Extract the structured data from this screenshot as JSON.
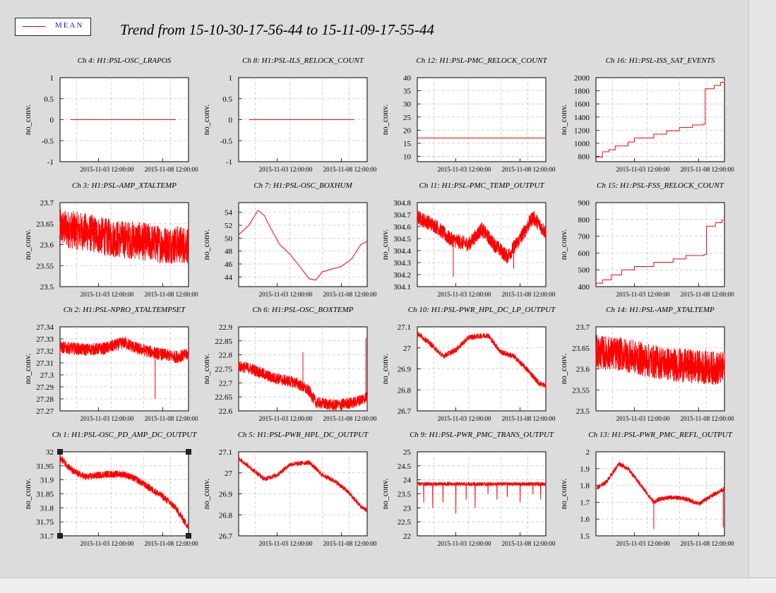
{
  "legend": {
    "label": "MEAN",
    "color": "#ff0000"
  },
  "title": "Trend from 15-10-30-17-56-44 to 15-11-09-17-55-44",
  "ylabel": "no_conv.",
  "xticks": [
    "2015-11-03 12:00:00",
    "2015-11-08 12:00:00"
  ],
  "line_color": "#ff0000",
  "chart_data": [
    {
      "type": "line",
      "title": "Ch 4: H1:PSL-OSC_LRAPOS",
      "ylabel": "no_conv.",
      "ylim": [
        -1,
        1
      ],
      "yticks": [
        "1",
        "0.5",
        "0",
        "-0.5",
        "-1"
      ],
      "shape": "flat",
      "level": 0
    },
    {
      "type": "line",
      "title": "Ch 8: H1:PSL-ILS_RELOCK_COUNT",
      "ylabel": "no_conv.",
      "ylim": [
        -1,
        1
      ],
      "yticks": [
        "1",
        "0.5",
        "0",
        "-0.5",
        "-1"
      ],
      "shape": "flat",
      "level": 0
    },
    {
      "type": "line",
      "title": "Ch 12: H1:PSL-PMC_RELOCK_COUNT",
      "ylabel": "no_conv.",
      "ylim": [
        8,
        40
      ],
      "yticks": [
        "40",
        "35",
        "30",
        "25",
        "20",
        "15",
        "10"
      ],
      "shape": "flat",
      "level": 17
    },
    {
      "type": "line",
      "title": "Ch 16: H1:PSL-ISS_SAT_EVENTS",
      "ylabel": "no_conv.",
      "ylim": [
        720,
        2000
      ],
      "yticks": [
        "2000",
        "1800",
        "1600",
        "1400",
        "1200",
        "1000",
        "800"
      ],
      "shape": "step",
      "steps": [
        [
          0,
          790
        ],
        [
          0.05,
          870
        ],
        [
          0.1,
          900
        ],
        [
          0.15,
          960
        ],
        [
          0.25,
          1020
        ],
        [
          0.3,
          1080
        ],
        [
          0.45,
          1140
        ],
        [
          0.55,
          1190
        ],
        [
          0.65,
          1240
        ],
        [
          0.75,
          1280
        ],
        [
          0.83,
          1290
        ],
        [
          0.85,
          1830
        ],
        [
          0.92,
          1880
        ],
        [
          0.97,
          1930
        ],
        [
          1,
          1950
        ]
      ]
    },
    {
      "type": "line",
      "title": "Ch 3: H1:PSL-AMP_XTALTEMP",
      "ylabel": "no_conv.",
      "ylim": [
        23.5,
        23.7
      ],
      "yticks": [
        "23.7",
        "23.65",
        "23.6",
        "23.55",
        "23.5"
      ],
      "shape": "noisy",
      "pts": [
        [
          0,
          23.64
        ],
        [
          0.2,
          23.63
        ],
        [
          0.4,
          23.615
        ],
        [
          0.6,
          23.61
        ],
        [
          0.8,
          23.6
        ],
        [
          1,
          23.6
        ]
      ],
      "noise": 0.045
    },
    {
      "type": "line",
      "title": "Ch 7: H1:PSL-OSC_BOXHUM",
      "ylabel": "no_conv.",
      "ylim": [
        42.5,
        55.5
      ],
      "yticks": [
        "54",
        "52",
        "50",
        "48",
        "46",
        "44"
      ],
      "shape": "smooth",
      "pts": [
        [
          0,
          50.5
        ],
        [
          0.08,
          52
        ],
        [
          0.15,
          54.3
        ],
        [
          0.2,
          53.5
        ],
        [
          0.25,
          51.5
        ],
        [
          0.32,
          49
        ],
        [
          0.4,
          47.5
        ],
        [
          0.48,
          45.5
        ],
        [
          0.55,
          43.7
        ],
        [
          0.6,
          43.5
        ],
        [
          0.65,
          44.8
        ],
        [
          0.72,
          45.2
        ],
        [
          0.8,
          45.6
        ],
        [
          0.88,
          46.8
        ],
        [
          0.95,
          49
        ],
        [
          1,
          49.5
        ]
      ],
      "noise": 0.1
    },
    {
      "type": "line",
      "title": "Ch 11: H1:PSL-PMC_TEMP_OUTPUT",
      "ylabel": "no_conv.",
      "ylim": [
        304.1,
        304.8
      ],
      "yticks": [
        "304.8",
        "304.7",
        "304.6",
        "304.5",
        "304.4",
        "304.3",
        "304.2",
        "304.1"
      ],
      "shape": "noisy",
      "pts": [
        [
          0,
          304.68
        ],
        [
          0.15,
          304.6
        ],
        [
          0.25,
          304.5
        ],
        [
          0.4,
          304.45
        ],
        [
          0.5,
          304.58
        ],
        [
          0.6,
          304.45
        ],
        [
          0.7,
          304.35
        ],
        [
          0.8,
          304.5
        ],
        [
          0.9,
          304.68
        ],
        [
          1,
          304.55
        ]
      ],
      "noise": 0.06,
      "spikes": [
        [
          0.28,
          304.18
        ],
        [
          0.75,
          304.25
        ]
      ]
    },
    {
      "type": "line",
      "title": "Ch 15: H1:PSL-FSS_RELOCK_COUNT",
      "ylabel": "no_conv.",
      "ylim": [
        400,
        900
      ],
      "yticks": [
        "900",
        "800",
        "700",
        "600",
        "500",
        "400"
      ],
      "shape": "step",
      "steps": [
        [
          0,
          420
        ],
        [
          0.05,
          440
        ],
        [
          0.12,
          470
        ],
        [
          0.2,
          500
        ],
        [
          0.3,
          520
        ],
        [
          0.45,
          545
        ],
        [
          0.6,
          565
        ],
        [
          0.7,
          585
        ],
        [
          0.84,
          590
        ],
        [
          0.86,
          760
        ],
        [
          0.93,
          780
        ],
        [
          0.98,
          795
        ],
        [
          1,
          800
        ]
      ]
    },
    {
      "type": "line",
      "title": "Ch 2: H1:PSL-NPRO_XTALTEMPSET",
      "ylabel": "no_conv.",
      "ylim": [
        27.27,
        27.34
      ],
      "yticks": [
        "27.34",
        "27.33",
        "27.32",
        "27.31",
        "27.3",
        "27.29",
        "27.28",
        "27.27"
      ],
      "shape": "noisy",
      "pts": [
        [
          0,
          27.323
        ],
        [
          0.2,
          27.321
        ],
        [
          0.35,
          27.322
        ],
        [
          0.5,
          27.327
        ],
        [
          0.6,
          27.322
        ],
        [
          0.75,
          27.318
        ],
        [
          0.9,
          27.315
        ],
        [
          1,
          27.317
        ]
      ],
      "noise": 0.005,
      "spikes": [
        [
          0.74,
          27.28
        ]
      ]
    },
    {
      "type": "line",
      "title": "Ch 6: H1:PSL-OSC_BOXTEMP",
      "ylabel": "no_conv.",
      "ylim": [
        22.6,
        22.9
      ],
      "yticks": [
        "22.9",
        "22.85",
        "22.8",
        "22.75",
        "22.7",
        "22.65",
        "22.6"
      ],
      "shape": "noisy",
      "pts": [
        [
          0,
          22.76
        ],
        [
          0.1,
          22.75
        ],
        [
          0.25,
          22.72
        ],
        [
          0.45,
          22.7
        ],
        [
          0.55,
          22.67
        ],
        [
          0.6,
          22.63
        ],
        [
          0.75,
          22.62
        ],
        [
          0.9,
          22.63
        ],
        [
          1,
          22.65
        ]
      ],
      "noise": 0.02,
      "spikes": [
        [
          0.5,
          22.81
        ],
        [
          0.99,
          22.86
        ]
      ]
    },
    {
      "type": "line",
      "title": "Ch 10: H1:PSL-PWR_HPL_DC_LP_OUTPUT",
      "ylabel": "no_conv.",
      "ylim": [
        26.7,
        27.1
      ],
      "yticks": [
        "27.1",
        "27",
        "26.9",
        "26.8",
        "26.7"
      ],
      "shape": "noisy",
      "pts": [
        [
          0,
          27.07
        ],
        [
          0.1,
          27.02
        ],
        [
          0.2,
          26.96
        ],
        [
          0.3,
          26.99
        ],
        [
          0.4,
          27.05
        ],
        [
          0.55,
          27.06
        ],
        [
          0.65,
          26.98
        ],
        [
          0.75,
          26.96
        ],
        [
          0.85,
          26.9
        ],
        [
          0.95,
          26.83
        ],
        [
          1,
          26.82
        ]
      ],
      "noise": 0.012
    },
    {
      "type": "line",
      "title": "Ch 14: H1:PSL-AMP_XTALTEMP",
      "ylabel": "no_conv.",
      "ylim": [
        23.5,
        23.7
      ],
      "yticks": [
        "23.7",
        "23.65",
        "23.6",
        "23.55",
        "23.5"
      ],
      "shape": "noisy",
      "pts": [
        [
          0,
          23.64
        ],
        [
          0.2,
          23.635
        ],
        [
          0.4,
          23.62
        ],
        [
          0.6,
          23.61
        ],
        [
          0.8,
          23.605
        ],
        [
          1,
          23.6
        ]
      ],
      "noise": 0.04
    },
    {
      "type": "line",
      "title": "Ch 1: H1:PSL-OSC_PD_AMP_DC_OUTPUT",
      "ylabel": "no_conv.",
      "ylim": [
        31.7,
        32
      ],
      "yticks": [
        "32",
        "31.95",
        "31.9",
        "31.85",
        "31.8",
        "31.75",
        "31.7"
      ],
      "shape": "noisy",
      "pts": [
        [
          0,
          31.98
        ],
        [
          0.1,
          31.93
        ],
        [
          0.2,
          31.91
        ],
        [
          0.35,
          31.92
        ],
        [
          0.5,
          31.92
        ],
        [
          0.6,
          31.9
        ],
        [
          0.7,
          31.87
        ],
        [
          0.8,
          31.84
        ],
        [
          0.9,
          31.8
        ],
        [
          0.97,
          31.75
        ],
        [
          1,
          31.73
        ]
      ],
      "noise": 0.012,
      "selected": true
    },
    {
      "type": "line",
      "title": "Ch 5: H1:PSL-PWR_HPL_DC_OUTPUT",
      "ylabel": "no_conv.",
      "ylim": [
        26.7,
        27.1
      ],
      "yticks": [
        "27.1",
        "27",
        "26.9",
        "26.8",
        "26.7"
      ],
      "shape": "noisy",
      "pts": [
        [
          0,
          27.07
        ],
        [
          0.1,
          27.02
        ],
        [
          0.2,
          26.97
        ],
        [
          0.3,
          26.99
        ],
        [
          0.4,
          27.04
        ],
        [
          0.55,
          27.05
        ],
        [
          0.65,
          26.99
        ],
        [
          0.75,
          26.96
        ],
        [
          0.85,
          26.91
        ],
        [
          0.95,
          26.84
        ],
        [
          1,
          26.82
        ]
      ],
      "noise": 0.01
    },
    {
      "type": "line",
      "title": "Ch 9: H1:PSL-PWR_PMC_TRANS_OUTPUT",
      "ylabel": "no_conv.",
      "ylim": [
        22,
        25
      ],
      "yticks": [
        "25",
        "24.5",
        "24",
        "23.5",
        "23",
        "22.5",
        "22"
      ],
      "shape": "noisy",
      "pts": [
        [
          0,
          23.85
        ],
        [
          0.5,
          23.85
        ],
        [
          1,
          23.85
        ]
      ],
      "noise": 0.06,
      "dips": [
        [
          0.05,
          23.2
        ],
        [
          0.12,
          23.0
        ],
        [
          0.2,
          23.2
        ],
        [
          0.3,
          22.8
        ],
        [
          0.38,
          23.3
        ],
        [
          0.45,
          23.0
        ],
        [
          0.55,
          23.5
        ],
        [
          0.62,
          23.3
        ],
        [
          0.7,
          23.4
        ],
        [
          0.8,
          23.2
        ],
        [
          0.9,
          23.5
        ],
        [
          0.96,
          23.3
        ]
      ]
    },
    {
      "type": "line",
      "title": "Ch 13: H1:PSL-PWR_PMC_REFL_OUTPUT",
      "ylabel": "no_conv.",
      "ylim": [
        1.5,
        2
      ],
      "yticks": [
        "2",
        "1.9",
        "1.8",
        "1.7",
        "1.6",
        "1.5"
      ],
      "shape": "noisy",
      "pts": [
        [
          0,
          1.78
        ],
        [
          0.08,
          1.82
        ],
        [
          0.18,
          1.93
        ],
        [
          0.25,
          1.9
        ],
        [
          0.35,
          1.8
        ],
        [
          0.45,
          1.7
        ],
        [
          0.5,
          1.72
        ],
        [
          0.6,
          1.73
        ],
        [
          0.7,
          1.72
        ],
        [
          0.8,
          1.69
        ],
        [
          0.9,
          1.74
        ],
        [
          1,
          1.78
        ]
      ],
      "noise": 0.012,
      "spikes": [
        [
          0.45,
          1.54
        ],
        [
          0.99,
          1.55
        ]
      ]
    }
  ]
}
